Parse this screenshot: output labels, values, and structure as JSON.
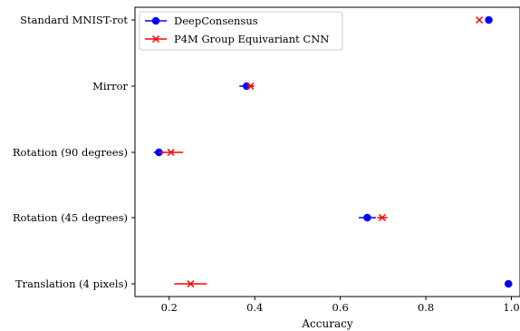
{
  "chart_data": {
    "type": "scatter",
    "xlabel": "Accuracy",
    "ylabel": "",
    "title": "",
    "xlim": [
      0.12,
      1.02
    ],
    "xticks": [
      "0.2",
      "0.4",
      "0.6",
      "0.8",
      "1.0"
    ],
    "xtick_values": [
      0.2,
      0.4,
      0.6,
      0.8,
      1.0
    ],
    "categories": [
      "Standard MNIST-rot",
      "Mirror",
      "Rotation (90 degrees)",
      "Rotation (45 degrees)",
      "Translation (4 pixels)"
    ],
    "legend_position": "top-left",
    "series": [
      {
        "name": "DeepConsensus",
        "color": "#0000ff",
        "marker": "circle",
        "values": [
          0.947,
          0.381,
          0.176,
          0.663,
          0.993
        ],
        "errors": [
          0.0,
          0.017,
          0.012,
          0.02,
          0.0
        ]
      },
      {
        "name": "P4M Group Equivariant CNN",
        "color": "#ff0000",
        "marker": "x",
        "values": [
          0.925,
          0.39,
          0.204,
          0.698,
          0.25
        ],
        "errors": [
          0.0,
          0.008,
          0.028,
          0.012,
          0.038
        ]
      }
    ]
  }
}
